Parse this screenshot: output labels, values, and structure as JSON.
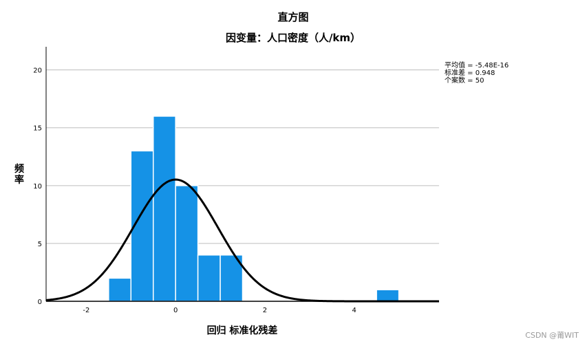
{
  "chart_data": {
    "type": "bar",
    "title": "直方图",
    "subtitle": "因变量：人口密度（人/km）",
    "xlabel": "回归 标准化残差",
    "ylabel": "频率",
    "xlim": [
      -2.9,
      5.9
    ],
    "ylim": [
      0,
      22
    ],
    "x_ticks": [
      -2,
      0,
      2,
      4
    ],
    "x_tick_labels": [
      "-2",
      "0",
      "2",
      "4"
    ],
    "y_ticks": [
      0,
      5,
      10,
      15,
      20
    ],
    "y_tick_labels": [
      "0",
      "5",
      "10",
      "15",
      "20"
    ],
    "grid": "horizontal",
    "bin_width": 0.5,
    "bins": [
      {
        "start": -1.5,
        "end": -1.0,
        "count": 2
      },
      {
        "start": -1.0,
        "end": -0.5,
        "count": 13
      },
      {
        "start": -0.5,
        "end": 0.0,
        "count": 16
      },
      {
        "start": 0.0,
        "end": 0.5,
        "count": 10
      },
      {
        "start": 0.5,
        "end": 1.0,
        "count": 4
      },
      {
        "start": 1.0,
        "end": 1.5,
        "count": 4
      },
      {
        "start": 4.5,
        "end": 5.0,
        "count": 1
      }
    ],
    "normal_curve": {
      "mean": -5.48e-16,
      "std": 0.948,
      "n": 50
    },
    "stats": [
      "平均值 = -5.48E-16",
      "标准差 = 0.948",
      "个案数 = 50"
    ],
    "colors": {
      "bar": "#1592e6",
      "curve": "#000000",
      "grid": "#bdbdbd"
    }
  },
  "watermark": "CSDN @莆WIT"
}
